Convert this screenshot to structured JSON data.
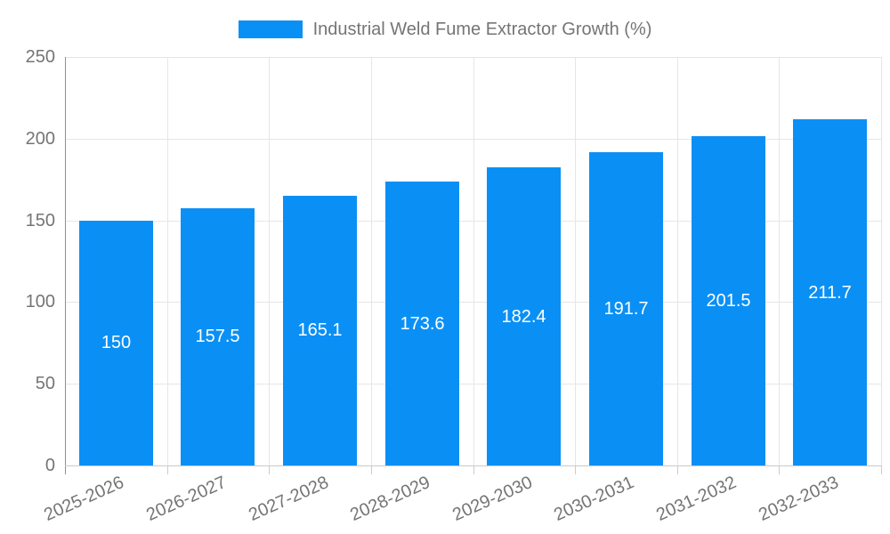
{
  "legend": {
    "label": "Industrial Weld Fume Extractor Growth (%)"
  },
  "chart_data": {
    "type": "bar",
    "title": "Industrial Weld Fume Extractor Growth (%)",
    "legend_position": "top",
    "categories": [
      "2025-2026",
      "2026-2027",
      "2027-2028",
      "2028-2029",
      "2029-2030",
      "2030-2031",
      "2031-2032",
      "2032-2033"
    ],
    "series": [
      {
        "name": "Industrial Weld Fume Extractor Growth (%)",
        "values": [
          150,
          157.5,
          165.1,
          173.6,
          182.4,
          191.7,
          201.5,
          211.7
        ],
        "value_labels": [
          "150",
          "157.5",
          "165.1",
          "173.6",
          "182.4",
          "191.7",
          "201.5",
          "211.7"
        ]
      }
    ],
    "xlabel": "",
    "ylabel": "",
    "ylim": [
      0,
      250
    ],
    "yticks": [
      0,
      50,
      100,
      150,
      200,
      250
    ],
    "grid": true,
    "colors": {
      "bar": "#0a90f5",
      "value_label": "#ffffff",
      "axis_text": "#757575",
      "gridline": "#e6e6e6",
      "axis_line_left": "#8f8f8f",
      "axis_line_bottom": "#c9c9c9",
      "tick_mark": "#cccccc"
    }
  }
}
